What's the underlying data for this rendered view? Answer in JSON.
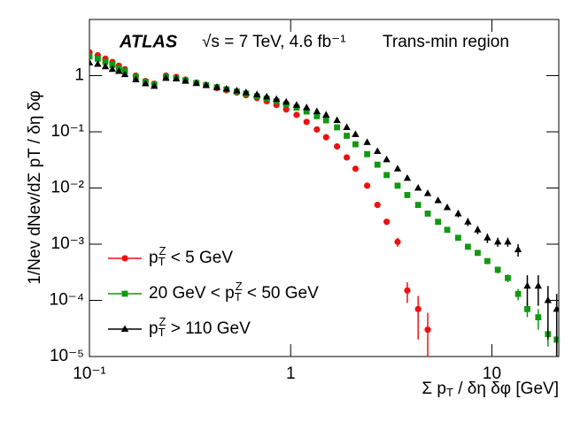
{
  "chart_data": {
    "type": "scatter",
    "annotations": [
      "ATLAS",
      "√s = 7 TeV, 4.6 fb⁻¹",
      "Trans-min region"
    ],
    "y_label": "1/Nev dNev/dΣ pT / δη δφ",
    "x_label": "Σ pT / δη δφ [GeV]",
    "log_x": true,
    "log_y": true,
    "legend": "lower left",
    "xlim": [
      0.1,
      21.5
    ],
    "ylim": [
      1e-05,
      10
    ],
    "xticks": [
      {
        "value": 0.1,
        "label": "10⁻¹"
      },
      1,
      10
    ],
    "yticks": [
      {
        "value": 1e-05,
        "label": "10⁻⁵"
      },
      {
        "value": 0.0001,
        "label": "10⁻⁴"
      },
      {
        "value": 0.001,
        "label": "10⁻³"
      },
      {
        "value": 0.01,
        "label": "10⁻²"
      },
      {
        "value": 0.1,
        "label": "10⁻¹"
      },
      1
    ],
    "x": [
      0.1,
      0.11,
      0.12,
      0.13,
      0.14,
      0.15,
      0.17,
      0.19,
      0.21,
      0.24,
      0.27,
      0.3,
      0.34,
      0.38,
      0.43,
      0.48,
      0.54,
      0.6,
      0.68,
      0.76,
      0.85,
      0.95,
      1.07,
      1.2,
      1.35,
      1.5,
      1.7,
      1.9,
      2.1,
      2.4,
      2.7,
      3.0,
      3.4,
      3.8,
      4.3,
      4.8,
      5.4,
      6.0,
      6.8,
      7.6,
      8.5,
      9.5,
      10.7,
      12,
      13.5,
      15,
      17,
      19,
      21
    ],
    "series": [
      {
        "name": "pTZ < 5 GeV",
        "color": "#ee1111",
        "marker": "circle",
        "values": [
          2.6,
          2.3,
          2.0,
          1.75,
          1.5,
          1.3,
          1.0,
          0.8,
          0.72,
          1.0,
          0.95,
          0.85,
          0.75,
          0.68,
          0.6,
          0.55,
          0.5,
          0.45,
          0.4,
          0.35,
          0.3,
          0.25,
          0.2,
          0.15,
          0.11,
          0.08,
          0.055,
          0.035,
          0.022,
          0.011,
          0.005,
          0.0025,
          0.0011,
          0.00015,
          7e-05,
          3e-05,
          null,
          null,
          null,
          null,
          null,
          null,
          null,
          null,
          null,
          null,
          null,
          null,
          null
        ],
        "errors": [
          null,
          null,
          null,
          null,
          null,
          null,
          null,
          null,
          null,
          null,
          null,
          null,
          null,
          null,
          null,
          null,
          null,
          null,
          null,
          null,
          null,
          null,
          null,
          null,
          null,
          null,
          null,
          null,
          null,
          null,
          null,
          0.0003,
          0.0002,
          6e-05,
          5e-05,
          3e-05,
          null,
          null,
          null,
          null,
          null,
          null,
          null,
          null,
          null,
          null,
          null,
          null,
          null
        ]
      },
      {
        "name": "20 GeV < pTZ < 50 GeV",
        "color": "#119911",
        "marker": "square",
        "values": [
          2.2,
          2.0,
          1.75,
          1.55,
          1.35,
          1.2,
          0.95,
          0.78,
          0.7,
          0.95,
          0.9,
          0.82,
          0.74,
          0.68,
          0.62,
          0.57,
          0.52,
          0.48,
          0.43,
          0.39,
          0.35,
          0.31,
          0.27,
          0.23,
          0.19,
          0.16,
          0.12,
          0.085,
          0.06,
          0.04,
          0.026,
          0.017,
          0.011,
          0.0075,
          0.005,
          0.0035,
          0.0025,
          0.0018,
          0.0013,
          0.0009,
          0.0007,
          0.0005,
          0.00035,
          0.00025,
          0.00013,
          7e-05,
          5e-05,
          2.5e-05,
          2e-05
        ],
        "errors": [
          null,
          null,
          null,
          null,
          null,
          null,
          null,
          null,
          null,
          null,
          null,
          null,
          null,
          null,
          null,
          null,
          null,
          null,
          null,
          null,
          null,
          null,
          null,
          null,
          null,
          null,
          null,
          null,
          null,
          null,
          null,
          null,
          null,
          null,
          null,
          null,
          null,
          null,
          null,
          null,
          8e-05,
          6e-05,
          5e-05,
          4e-05,
          3e-05,
          2e-05,
          2e-05,
          1e-05,
          1e-05
        ]
      },
      {
        "name": "pTZ >  110 GeV",
        "color": "#000000",
        "marker": "triangle",
        "values": [
          1.7,
          1.6,
          1.45,
          1.3,
          1.2,
          1.05,
          0.85,
          0.72,
          0.65,
          0.9,
          0.88,
          0.8,
          0.73,
          0.67,
          0.62,
          0.58,
          0.54,
          0.5,
          0.46,
          0.42,
          0.38,
          0.34,
          0.3,
          0.27,
          0.23,
          0.2,
          0.16,
          0.12,
          0.09,
          0.065,
          0.045,
          0.032,
          0.022,
          0.015,
          0.01,
          0.008,
          0.006,
          0.0045,
          0.0035,
          0.0025,
          0.0018,
          0.0013,
          0.0011,
          0.0011,
          0.0008,
          0.00018,
          0.00018,
          0.0001,
          7e-05
        ],
        "errors": [
          null,
          null,
          null,
          null,
          null,
          null,
          null,
          null,
          null,
          null,
          null,
          null,
          null,
          null,
          null,
          null,
          null,
          null,
          null,
          null,
          null,
          null,
          null,
          null,
          null,
          null,
          null,
          null,
          null,
          null,
          null,
          null,
          null,
          null,
          null,
          null,
          null,
          null,
          0.0005,
          0.0004,
          0.0003,
          0.00025,
          0.0002,
          0.0002,
          0.0002,
          0.0001,
          0.0001,
          8e-05,
          6e-05
        ]
      }
    ]
  }
}
